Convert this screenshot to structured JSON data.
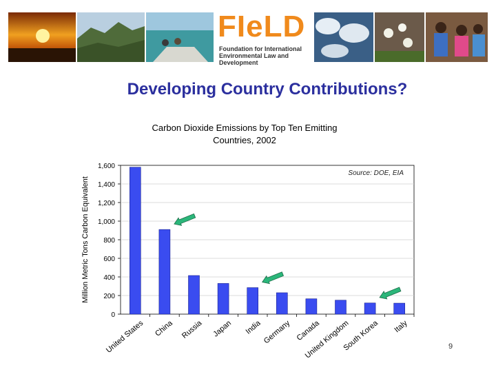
{
  "slide": {
    "title": "Developing Country Contributions?",
    "number": "9"
  },
  "logo": {
    "word": "FIeLD",
    "subtitle_line1": "Foundation for International",
    "subtitle_line2": "Environmental Law and Development"
  },
  "chart_data": {
    "type": "bar",
    "title_line1": "Carbon Dioxide Emissions by Top Ten Emitting",
    "title_line2": "Countries, 2002",
    "ylabel": "Million Metric Tons Carbon Equivalent",
    "source": "Source: DOE, EIA",
    "categories": [
      "United States",
      "China",
      "Russia",
      "Japan",
      "India",
      "Germany",
      "Canada",
      "United Kingdom",
      "South Korea",
      "Italy"
    ],
    "values": [
      1580,
      910,
      415,
      330,
      285,
      230,
      165,
      150,
      120,
      118
    ],
    "ylim": [
      0,
      1600
    ],
    "yticks": [
      "0",
      "200",
      "400",
      "600",
      "800",
      "1,000",
      "1,200",
      "1,400",
      "1,600"
    ],
    "grid": true,
    "bar_color": "#3a4cf0",
    "arrow_color": "#2bb67a",
    "arrows_point_to": [
      "China",
      "India",
      "South Korea"
    ]
  }
}
